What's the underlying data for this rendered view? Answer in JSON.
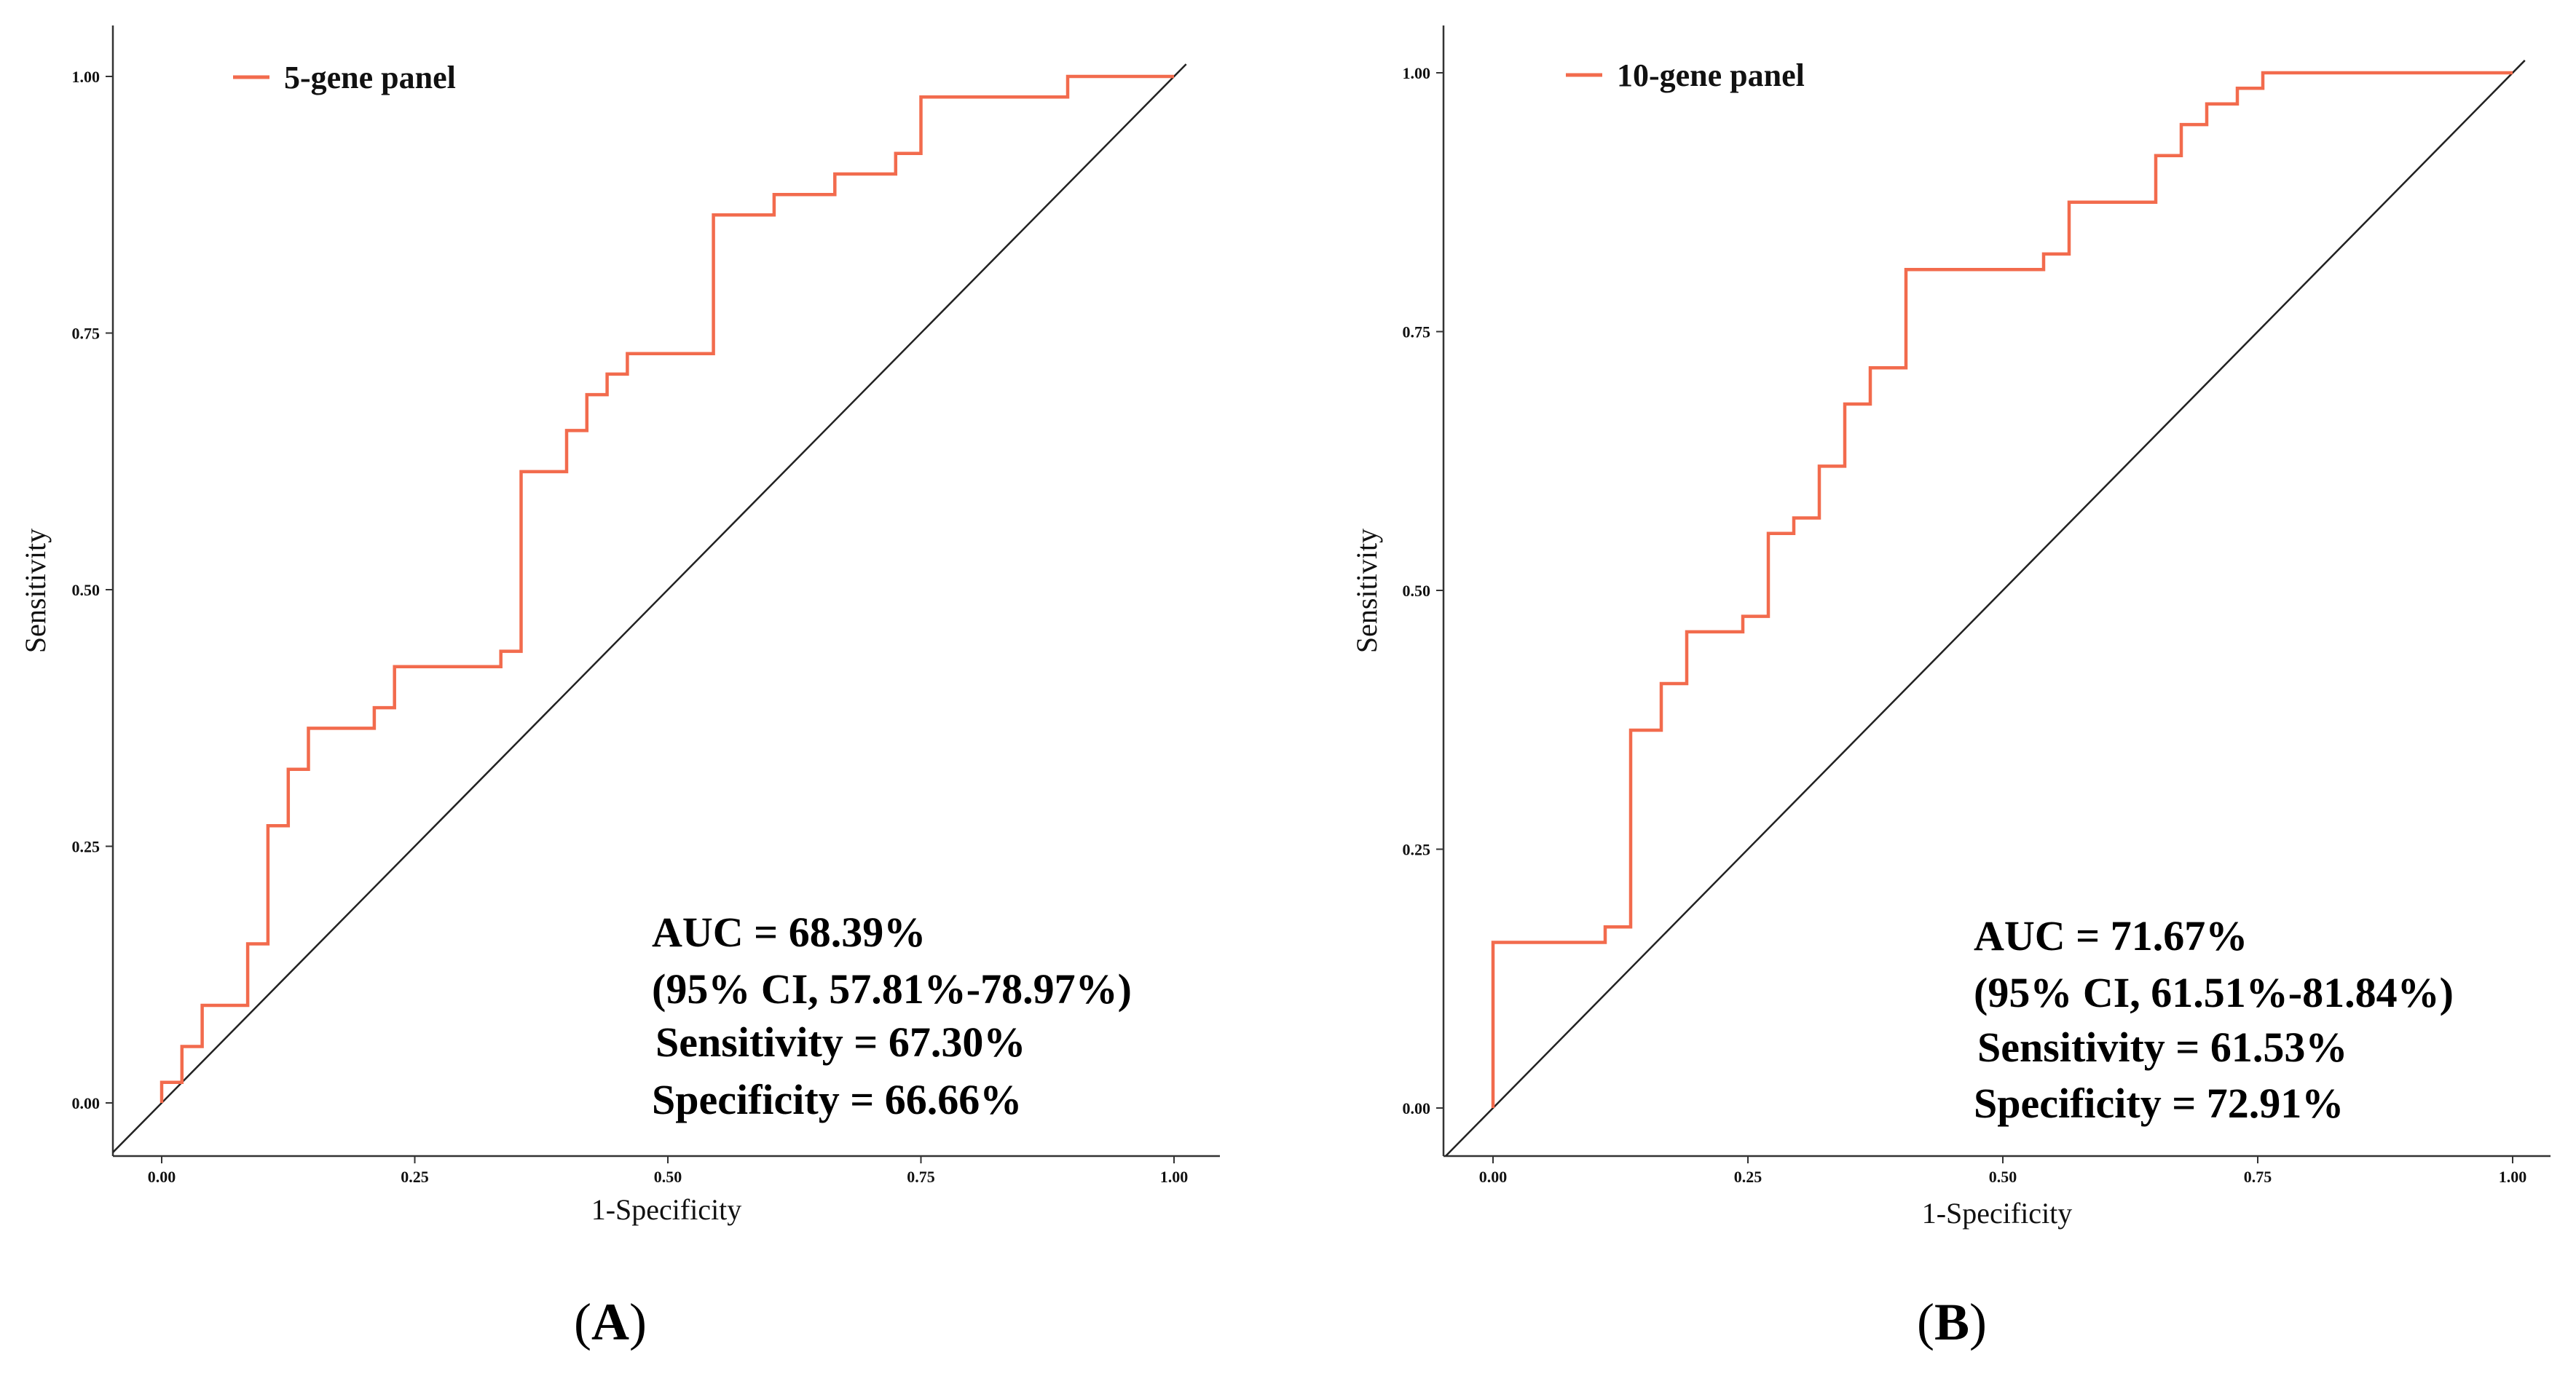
{
  "chart_data": [
    {
      "type": "line",
      "panel_label": {
        "open": "(",
        "letter": "A",
        "close": ")"
      },
      "xlabel": "1-Specificity",
      "ylabel": "Sensitivity",
      "xlim": [
        0,
        1
      ],
      "ylim": [
        0,
        1
      ],
      "x_ticks": [
        "0.00",
        "0.25",
        "0.50",
        "0.75",
        "1.00"
      ],
      "y_ticks": [
        "0.00",
        "0.25",
        "0.50",
        "0.75",
        "1.00"
      ],
      "legend": {
        "label": "5-gene panel",
        "position": "top-left"
      },
      "colors": {
        "curve": "#f26b4d",
        "diagonal": "#222222"
      },
      "annotations": [
        "AUC = 68.39%",
        "(95% CI, 57.81%-78.97%)",
        "Sensitivity = 67.30%",
        "Specificity = 66.66%"
      ],
      "series": [
        {
          "name": "5-gene panel",
          "step": true,
          "x": [
            0,
            0,
            0.02,
            0.02,
            0.04,
            0.04,
            0.085,
            0.085,
            0.105,
            0.105,
            0.125,
            0.125,
            0.145,
            0.145,
            0.21,
            0.21,
            0.23,
            0.23,
            0.335,
            0.335,
            0.355,
            0.355,
            0.4,
            0.4,
            0.42,
            0.42,
            0.44,
            0.44,
            0.46,
            0.46,
            0.545,
            0.545,
            0.605,
            0.605,
            0.665,
            0.665,
            0.725,
            0.725,
            0.75,
            0.75,
            0.895,
            0.895,
            1
          ],
          "y": [
            0,
            0.02,
            0.02,
            0.055,
            0.055,
            0.095,
            0.095,
            0.155,
            0.155,
            0.27,
            0.27,
            0.325,
            0.325,
            0.365,
            0.365,
            0.385,
            0.385,
            0.425,
            0.425,
            0.44,
            0.44,
            0.615,
            0.615,
            0.655,
            0.655,
            0.69,
            0.69,
            0.71,
            0.71,
            0.73,
            0.73,
            0.865,
            0.865,
            0.885,
            0.885,
            0.905,
            0.905,
            0.925,
            0.925,
            0.98,
            0.98,
            1,
            1
          ]
        }
      ]
    },
    {
      "type": "line",
      "panel_label": {
        "open": "(",
        "letter": "B",
        "close": ")"
      },
      "xlabel": "1-Specificity",
      "ylabel": "Sensitivity",
      "xlim": [
        0,
        1
      ],
      "ylim": [
        0,
        1
      ],
      "x_ticks": [
        "0.00",
        "0.25",
        "0.50",
        "0.75",
        "1.00"
      ],
      "y_ticks": [
        "0.00",
        "0.25",
        "0.50",
        "0.75",
        "1.00"
      ],
      "legend": {
        "label": "10-gene panel",
        "position": "top-left"
      },
      "colors": {
        "curve": "#f26b4d",
        "diagonal": "#222222"
      },
      "annotations": [
        "AUC = 71.67%",
        "(95% CI, 61.51%-81.84%)",
        "Sensitivity = 61.53%",
        "Specificity = 72.91%"
      ],
      "series": [
        {
          "name": "10-gene panel",
          "step": true,
          "x": [
            0,
            0,
            0.11,
            0.11,
            0.135,
            0.135,
            0.165,
            0.165,
            0.19,
            0.19,
            0.245,
            0.245,
            0.27,
            0.27,
            0.295,
            0.295,
            0.32,
            0.32,
            0.345,
            0.345,
            0.37,
            0.37,
            0.405,
            0.405,
            0.54,
            0.54,
            0.565,
            0.565,
            0.65,
            0.65,
            0.675,
            0.675,
            0.7,
            0.7,
            0.73,
            0.73,
            0.755,
            0.755,
            1
          ],
          "y": [
            0,
            0.16,
            0.16,
            0.175,
            0.175,
            0.365,
            0.365,
            0.41,
            0.41,
            0.46,
            0.46,
            0.475,
            0.475,
            0.555,
            0.555,
            0.57,
            0.57,
            0.62,
            0.62,
            0.68,
            0.68,
            0.715,
            0.715,
            0.81,
            0.81,
            0.825,
            0.825,
            0.875,
            0.875,
            0.92,
            0.92,
            0.95,
            0.95,
            0.97,
            0.97,
            0.985,
            0.985,
            1,
            1
          ]
        }
      ]
    }
  ]
}
